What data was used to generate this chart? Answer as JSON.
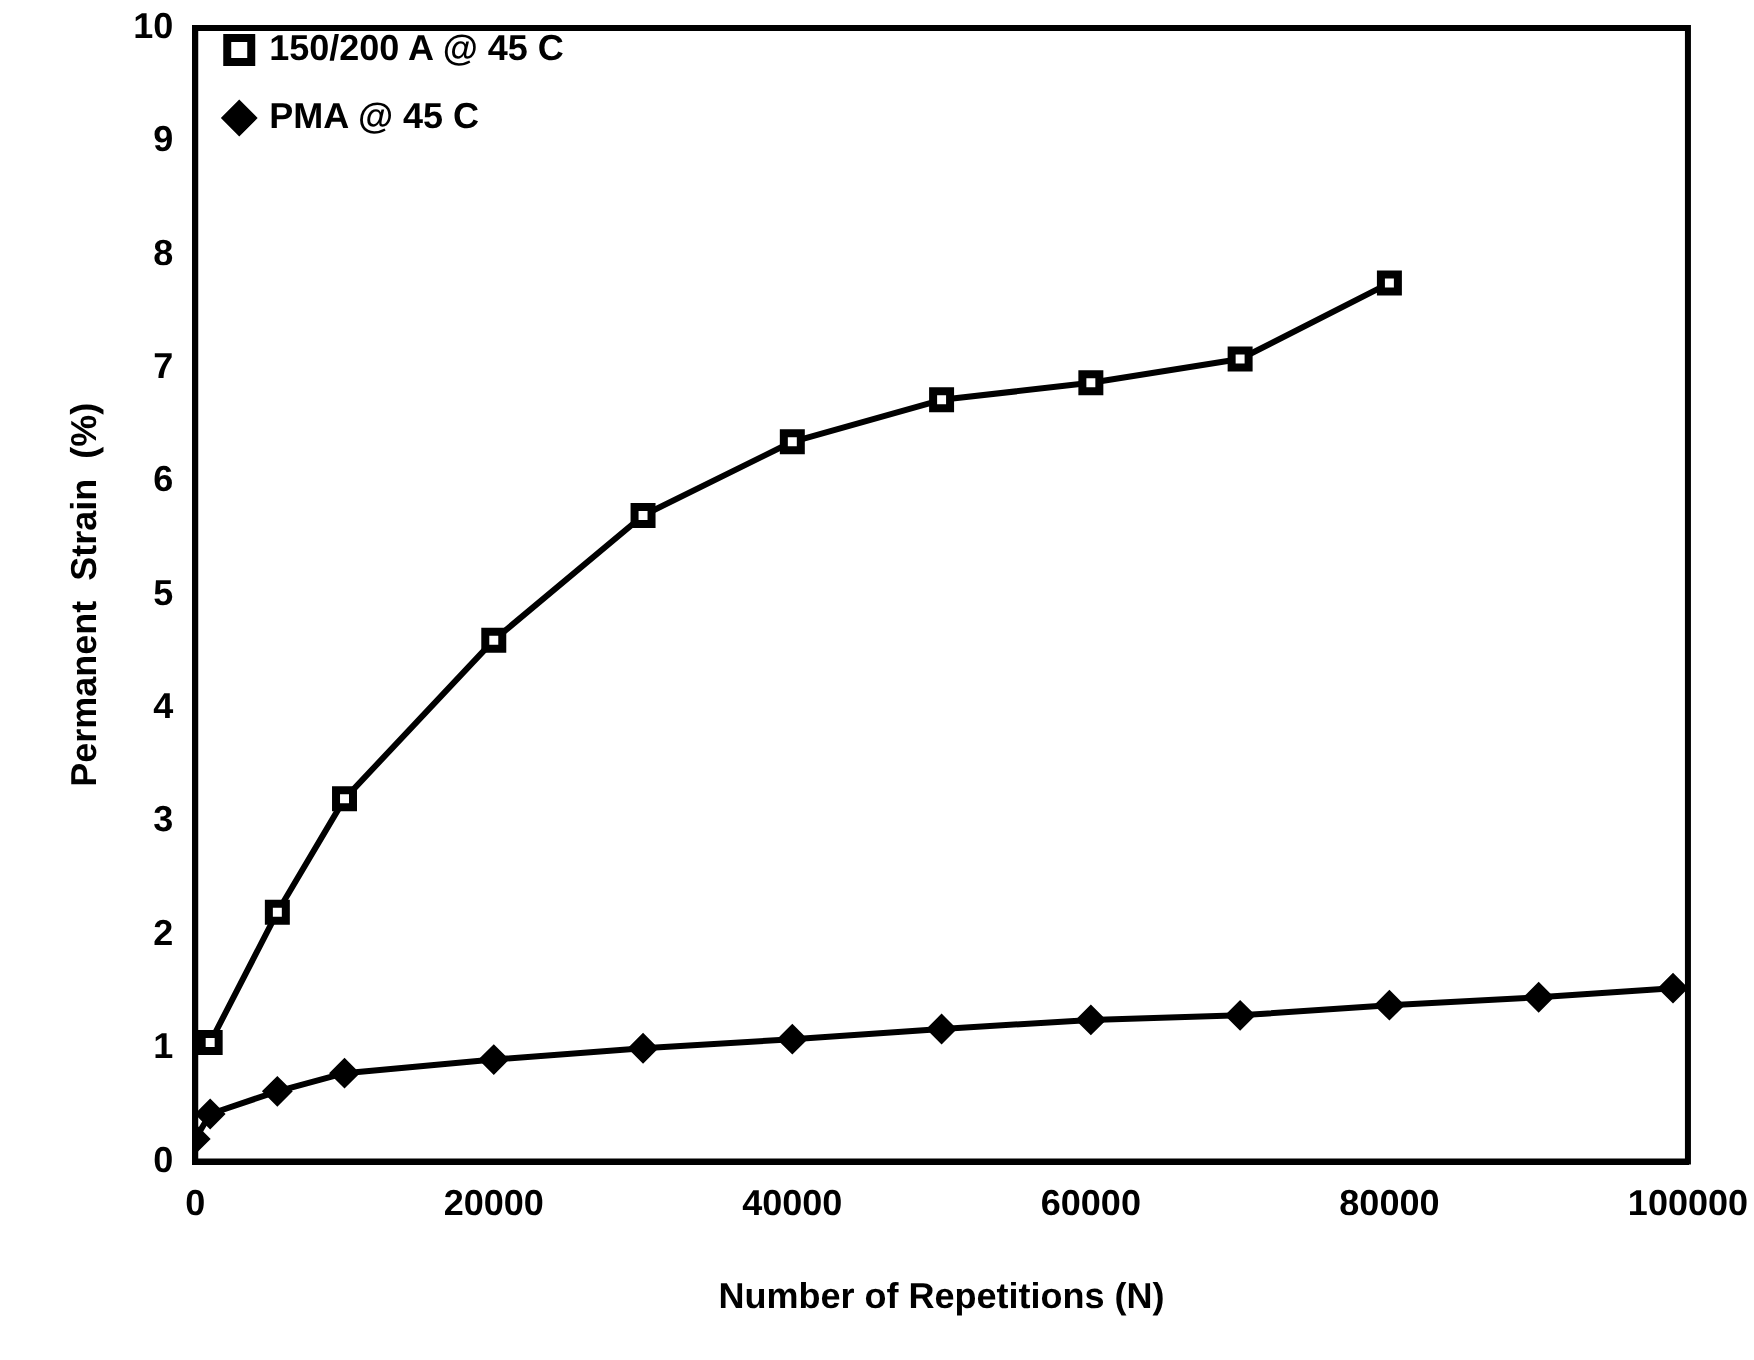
{
  "chart_data": {
    "type": "line",
    "xlabel": "Number of Repetitions (N)",
    "ylabel": "Permanent  Strain  (%)",
    "xlim": [
      0,
      100000
    ],
    "xticks": [
      0,
      20000,
      40000,
      60000,
      80000,
      100000
    ],
    "ylim": [
      0,
      10
    ],
    "yticks": [
      0,
      1,
      2,
      3,
      4,
      5,
      6,
      7,
      8,
      9,
      10
    ],
    "grid": false,
    "legend": "top left",
    "line_style": "solid",
    "series": [
      {
        "name": "150/200 A @ 45 C",
        "color": "#000000",
        "marker": "square",
        "x": [
          1000,
          5500,
          10000,
          20000,
          30000,
          40000,
          50000,
          60000,
          70000,
          80000
        ],
        "values": [
          1.05,
          2.2,
          3.2,
          4.6,
          5.7,
          6.35,
          6.72,
          6.87,
          7.08,
          7.75
        ]
      },
      {
        "name": "PMA @ 45 C",
        "color": "#000000",
        "marker": "diamond",
        "x": [
          0,
          1000,
          5500,
          10000,
          20000,
          30000,
          40000,
          50000,
          60000,
          70000,
          80000,
          90000,
          99000
        ],
        "values": [
          0.2,
          0.42,
          0.62,
          0.78,
          0.9,
          1.0,
          1.08,
          1.17,
          1.25,
          1.29,
          1.38,
          1.45,
          1.53
        ]
      }
    ]
  }
}
